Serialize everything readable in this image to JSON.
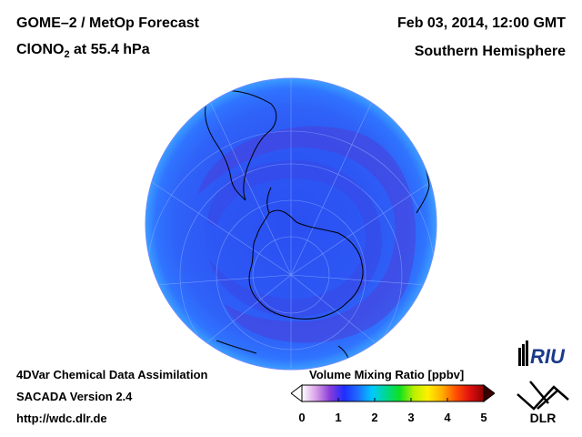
{
  "header": {
    "product": "GOME–2 / MetOp Forecast",
    "species_main": "ClONO",
    "species_sub": "2",
    "species_rest": " at 55.4 hPa",
    "datetime": "Feb 03, 2014, 12:00 GMT",
    "region": "Southern Hemisphere"
  },
  "footer": {
    "system": "4DVar Chemical Data Assimilation",
    "version": "SACADA Version 2.4",
    "url": "http://wdc.dlr.de"
  },
  "colorbar": {
    "title": "Volume Mixing Ratio [ppbv]",
    "ticks": [
      "0",
      "1",
      "2",
      "3",
      "4",
      "5"
    ],
    "min": 0,
    "max": 5,
    "colors": [
      "#ffffff",
      "#d8a0e8",
      "#8a3cd8",
      "#1e2cff",
      "#1e6cff",
      "#00c8ff",
      "#00d890",
      "#10e020",
      "#b8f000",
      "#fff000",
      "#ffb000",
      "#ff5000",
      "#e01010",
      "#900000"
    ]
  },
  "map": {
    "projection": "orthographic, south pole centered",
    "field_colors": {
      "deep": "#2548f0",
      "mid": "#2f5cf5",
      "band": "#4a44d6",
      "outer": "#2e70ff",
      "edge": "#38a8ff"
    }
  },
  "logos": {
    "riu": "RIU",
    "dlr": "DLR"
  }
}
